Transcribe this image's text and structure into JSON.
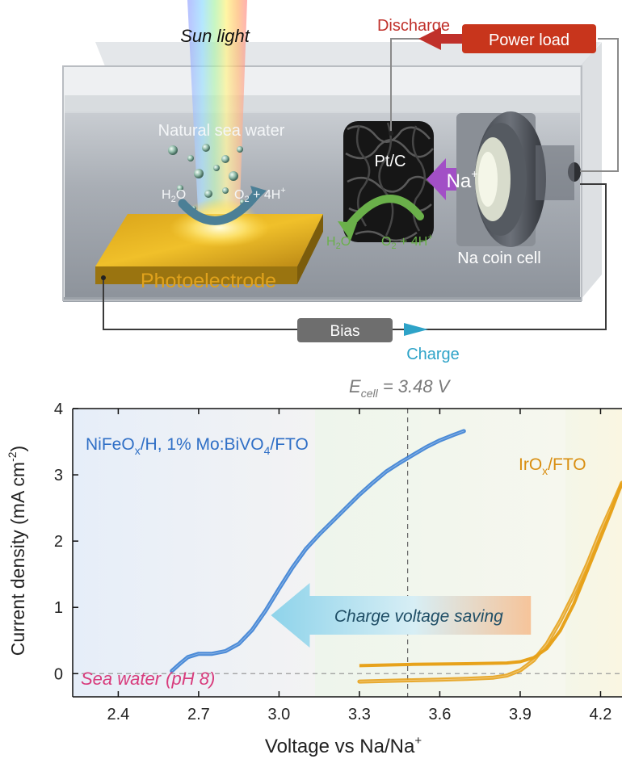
{
  "diagram": {
    "sun_light": "Sun light",
    "discharge": "Discharge",
    "power_load": "Power load",
    "natural_sea_water": "Natural sea water",
    "pt_c": "Pt/C",
    "na_ion_base": "Na",
    "na_ion_sup": "+",
    "left_h2o_base": "H",
    "left_h2o_sub": "2",
    "left_h2o_end": "O",
    "left_o2_base": "O",
    "left_o2_sub": "2",
    "left_o2_mid": " + 4H",
    "left_o2_sup": "+",
    "right_h2o_base": "H",
    "right_h2o_sub": "2",
    "right_h2o_end": "O",
    "right_o2_base": "O",
    "right_o2_sub": "2",
    "right_o2_mid": " + 4H",
    "right_o2_sup": "+",
    "na_coin_cell": "Na coin cell",
    "photoelectrode": "Photoelectrode",
    "bias": "Bias",
    "charge": "Charge",
    "colors": {
      "discharge": "#c0312b",
      "charge": "#2ea3c8",
      "power_load_bg": "#c8351c",
      "photoelectrode_text": "#e0a21c",
      "na_ion": "#a24fc6"
    }
  },
  "chart_data": {
    "type": "line",
    "annotation_ecell_base": "E",
    "annotation_ecell_sub": "cell",
    "annotation_ecell_rest": " = 3.48 V",
    "ecell_value": 3.48,
    "xlabel_base": "Voltage vs Na/Na",
    "xlabel_sup": "+",
    "ylabel_base": "Current density (mA cm",
    "ylabel_sup": "-2",
    "ylabel_end": ")",
    "xlim": [
      2.23,
      4.28
    ],
    "ylim": [
      -0.35,
      4.0
    ],
    "xticks": [
      {
        "value": 2.4,
        "label": "2.4"
      },
      {
        "value": 2.7,
        "label": "2.7"
      },
      {
        "value": 3.0,
        "label": "3.0"
      },
      {
        "value": 3.3,
        "label": "3.3"
      },
      {
        "value": 3.6,
        "label": "3.6"
      },
      {
        "value": 3.9,
        "label": "3.9"
      },
      {
        "value": 4.2,
        "label": "4.2"
      }
    ],
    "yticks": [
      {
        "value": 0,
        "label": "0"
      },
      {
        "value": 1,
        "label": "1"
      },
      {
        "value": 2,
        "label": "2"
      },
      {
        "value": 3,
        "label": "3"
      },
      {
        "value": 4,
        "label": "4"
      }
    ],
    "arrow_label": "Charge voltage saving",
    "condition_label": "Sea water (pH 8)",
    "series": [
      {
        "name_parts": [
          "NiFeO",
          "x",
          "/H, 1% Mo:BiVO",
          "4",
          "/FTO"
        ],
        "color": "#3a7fd4",
        "points": [
          [
            2.6,
            0.04
          ],
          [
            2.63,
            0.15
          ],
          [
            2.66,
            0.25
          ],
          [
            2.7,
            0.3
          ],
          [
            2.75,
            0.3
          ],
          [
            2.8,
            0.34
          ],
          [
            2.85,
            0.45
          ],
          [
            2.9,
            0.66
          ],
          [
            2.95,
            0.95
          ],
          [
            3.0,
            1.28
          ],
          [
            3.05,
            1.6
          ],
          [
            3.1,
            1.88
          ],
          [
            3.15,
            2.1
          ],
          [
            3.2,
            2.3
          ],
          [
            3.25,
            2.5
          ],
          [
            3.3,
            2.7
          ],
          [
            3.35,
            2.88
          ],
          [
            3.4,
            3.05
          ],
          [
            3.45,
            3.18
          ],
          [
            3.5,
            3.3
          ],
          [
            3.55,
            3.42
          ],
          [
            3.6,
            3.52
          ],
          [
            3.65,
            3.6
          ],
          [
            3.69,
            3.66
          ]
        ]
      },
      {
        "name_parts": [
          "IrO",
          "x",
          "/FTO"
        ],
        "color": "#e7a21b",
        "points": [
          [
            3.3,
            -0.12
          ],
          [
            3.4,
            -0.11
          ],
          [
            3.5,
            -0.1
          ],
          [
            3.6,
            -0.09
          ],
          [
            3.7,
            -0.08
          ],
          [
            3.8,
            -0.06
          ],
          [
            3.85,
            -0.03
          ],
          [
            3.9,
            0.05
          ],
          [
            3.95,
            0.2
          ],
          [
            4.0,
            0.45
          ],
          [
            4.05,
            0.8
          ],
          [
            4.1,
            1.2
          ],
          [
            4.15,
            1.65
          ],
          [
            4.2,
            2.15
          ],
          [
            4.25,
            2.6
          ],
          [
            4.28,
            2.88
          ]
        ],
        "return_points": [
          [
            4.28,
            2.88
          ],
          [
            4.24,
            2.45
          ],
          [
            4.2,
            2.05
          ],
          [
            4.15,
            1.55
          ],
          [
            4.1,
            1.05
          ],
          [
            4.05,
            0.65
          ],
          [
            4.0,
            0.38
          ],
          [
            3.95,
            0.24
          ],
          [
            3.9,
            0.18
          ],
          [
            3.85,
            0.16
          ],
          [
            3.7,
            0.15
          ],
          [
            3.5,
            0.14
          ],
          [
            3.3,
            0.12
          ]
        ]
      }
    ]
  }
}
